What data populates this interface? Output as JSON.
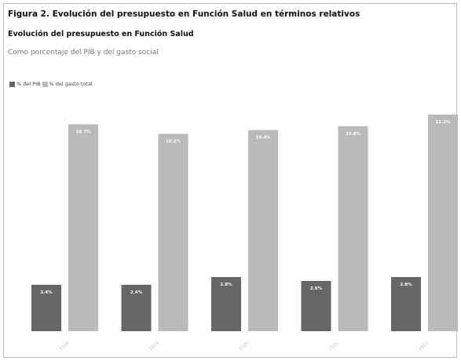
{
  "figure_title": "Figura 2. Evolución del presupuesto en Función Salud en términos relativos",
  "chart_title": "Evolución del presupuesto en Función Salud",
  "subtitle": "Como porcentaje del PIB y del gasto social",
  "colors": {
    "pib": "#666666",
    "gasto": "#bababa",
    "label_text": "#ffffff",
    "tick_text": "#bbbbbb"
  },
  "chart_data": {
    "type": "bar",
    "categories": [
      "2018",
      "2019",
      "2020",
      "2021",
      "2022"
    ],
    "series": [
      {
        "name": "% del PIB",
        "values": [
          2.4,
          2.4,
          2.8,
          2.6,
          2.8
        ],
        "labels": [
          "2.4%",
          "2.4%",
          "2.8%",
          "2.6%",
          "2.8%"
        ]
      },
      {
        "name": "% del gasto total",
        "values": [
          10.7,
          10.2,
          10.4,
          10.6,
          11.2
        ],
        "labels": [
          "10.7%",
          "10.2%",
          "10.4%",
          "10.6%",
          "11.2%"
        ]
      }
    ],
    "title": "Evolución del presupuesto en Función Salud",
    "xlabel": "",
    "ylabel": "",
    "ylim": [
      0,
      11.2
    ],
    "grid": false,
    "legend": "top-left"
  }
}
